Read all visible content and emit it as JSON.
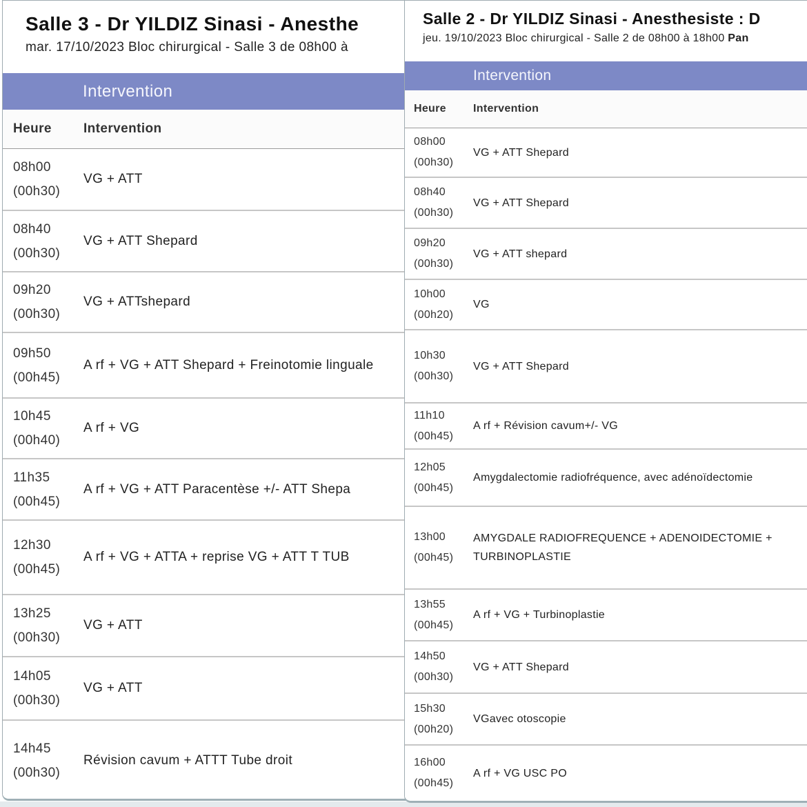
{
  "colors": {
    "section_bar_bg": "#7d89c6",
    "section_bar_text": "#f5f6fc"
  },
  "panels": [
    {
      "title": "Salle 3 - Dr YILDIZ Sinasi - Anesthe",
      "subtitle": "mar. 17/10/2023 Bloc chirurgical - Salle 3 de 08h00 à",
      "subtitle_bold": "",
      "bar_label": "Intervention",
      "columns": [
        "Heure",
        "Intervention"
      ],
      "rows": [
        {
          "time": "08h00",
          "duration": "(00h30)",
          "intervention": "VG + ATT"
        },
        {
          "time": "08h40",
          "duration": "(00h30)",
          "intervention": "VG + ATT Shepard"
        },
        {
          "time": "09h20",
          "duration": "(00h30)",
          "intervention": "VG + ATTshepard"
        },
        {
          "time": "09h50",
          "duration": "(00h45)",
          "intervention": "A rf + VG + ATT Shepard + Freinotomie linguale"
        },
        {
          "time": "10h45",
          "duration": "(00h40)",
          "intervention": "A rf + VG"
        },
        {
          "time": "11h35",
          "duration": "(00h45)",
          "intervention": "A rf + VG + ATT Paracentèse +/- ATT Shepa"
        },
        {
          "time": "12h30",
          "duration": "(00h45)",
          "intervention": "A rf + VG + ATTA + reprise VG + ATT T TUB"
        },
        {
          "time": "13h25",
          "duration": "(00h30)",
          "intervention": "VG + ATT"
        },
        {
          "time": "14h05",
          "duration": "(00h30)",
          "intervention": "VG + ATT"
        },
        {
          "time": "14h45",
          "duration": "(00h30)",
          "intervention": "Révision cavum + ATTT Tube droit"
        }
      ]
    },
    {
      "title": "Salle 2 - Dr YILDIZ Sinasi - Anesthesiste : D",
      "subtitle": "jeu. 19/10/2023 Bloc chirurgical - Salle 2 de 08h00 à 18h00 ",
      "subtitle_bold": "Pan",
      "bar_label": "Intervention",
      "columns": [
        "Heure",
        "Intervention"
      ],
      "rows": [
        {
          "time": "08h00",
          "duration": "(00h30)",
          "intervention": "VG + ATT Shepard"
        },
        {
          "time": "08h40",
          "duration": "(00h30)",
          "intervention": "VG + ATT Shepard"
        },
        {
          "time": "09h20",
          "duration": "(00h30)",
          "intervention": "VG + ATT shepard"
        },
        {
          "time": "10h00",
          "duration": "(00h20)",
          "intervention": "VG"
        },
        {
          "time": "10h30",
          "duration": "(00h30)",
          "intervention": "VG + ATT Shepard"
        },
        {
          "time": "11h10",
          "duration": "(00h45)",
          "intervention": "A rf + Révision cavum+/- VG"
        },
        {
          "time": "12h05",
          "duration": "(00h45)",
          "intervention": "Amygdalectomie radiofréquence, avec adénoïdectomie"
        },
        {
          "time": "13h00",
          "duration": "(00h45)",
          "intervention": "AMYGDALE RADIOFREQUENCE + ADENOIDECTOMIE + TURBINOPLASTIE"
        },
        {
          "time": "13h55",
          "duration": "(00h45)",
          "intervention": "A rf + VG + Turbinoplastie"
        },
        {
          "time": "14h50",
          "duration": "(00h30)",
          "intervention": "VG + ATT Shepard"
        },
        {
          "time": "15h30",
          "duration": "(00h20)",
          "intervention": "VGavec otoscopie"
        },
        {
          "time": "16h00",
          "duration": "(00h45)",
          "intervention": "A rf + VG USC PO"
        }
      ]
    }
  ]
}
